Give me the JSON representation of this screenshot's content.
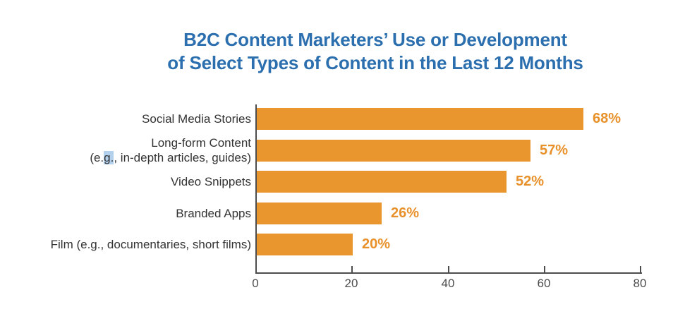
{
  "title": {
    "line1": "B2C Content Marketers’ Use or Development",
    "line2": "of Select Types of Content in the Last 12 Months"
  },
  "chart_data": {
    "type": "bar",
    "orientation": "horizontal",
    "title": "B2C Content Marketers’ Use or Development of Select Types of Content in the Last 12 Months",
    "categories": [
      "Social Media Stories",
      "Long-form Content (e.g., in-depth articles, guides)",
      "Video Snippets",
      "Branded Apps",
      "Film (e.g., documentaries, short films)"
    ],
    "category_label_lines": [
      [
        "Social Media Stories"
      ],
      [
        "Long-form Content",
        "(e.g., in-depth articles, guides)"
      ],
      [
        "Video Snippets"
      ],
      [
        "Branded Apps"
      ],
      [
        "Film (e.g., documentaries, short films)"
      ]
    ],
    "values": [
      68,
      57,
      52,
      26,
      20
    ],
    "data_labels": [
      "68%",
      "57%",
      "52%",
      "26%",
      "20%"
    ],
    "xlabel": "",
    "ylabel": "",
    "xlim": [
      0,
      80
    ],
    "xtick_values": [
      0,
      20,
      40,
      60,
      80
    ],
    "xtick_labels": [
      "0",
      "20",
      "40",
      "60",
      "80"
    ],
    "grid": false,
    "legend": false
  },
  "colors": {
    "title_blue": "#2C6FAF",
    "bar_orange": "#E8962D",
    "value_label_orange": "#E8912A",
    "axis_gray": "#4D4D4D",
    "category_text": "#333333",
    "selection_highlight": "#B3D0EC",
    "background": "#FFFFFF"
  },
  "selection_artifact": {
    "row_index": 1,
    "line_index": 1,
    "text": "g."
  }
}
